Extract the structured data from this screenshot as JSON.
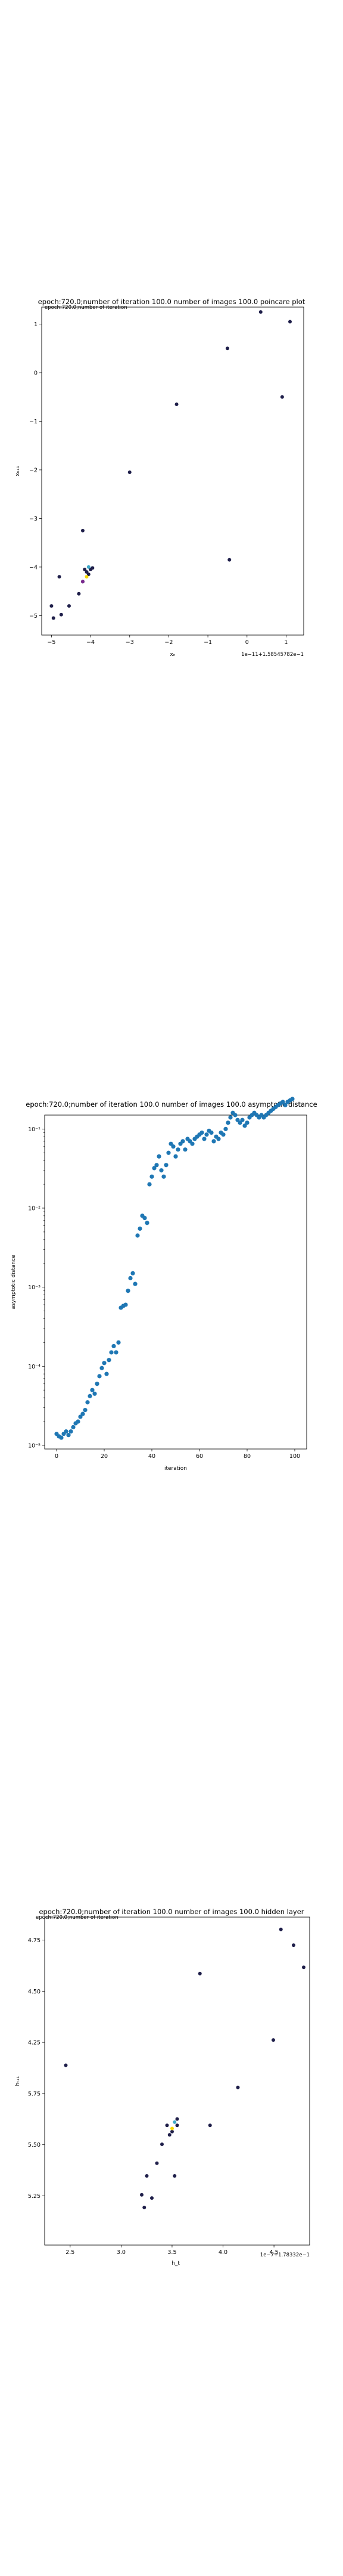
{
  "chart_data": [
    {
      "type": "scatter",
      "title": "epoch:720.0;number of iteration 100.0 number of images 100.0 poincare plot",
      "overlay_text": "epoch:720.0;number of iteration",
      "xlabel": "xₙ",
      "ylabel": "xₙ₊₁",
      "x_offset_text": "1e−11+1.58545782e−1",
      "xlim": [
        -5.25,
        1.45
      ],
      "ylim": [
        -5.4,
        1.35
      ],
      "xticks": [
        -5,
        -4,
        -3,
        -2,
        -1,
        0,
        1
      ],
      "xtick_labels": [
        "−5",
        "−4",
        "−3",
        "−2",
        "−1",
        "0",
        "1"
      ],
      "yticks": [
        -5,
        -4,
        -3,
        -2,
        -1,
        0,
        1
      ],
      "ytick_labels": [
        "−5",
        "−4",
        "−3",
        "−2",
        "−1",
        "0",
        "1"
      ],
      "grid": false,
      "marker_color": "#1f1f4a",
      "points": [
        [
          -4.95,
          -5.05
        ],
        [
          -5.0,
          -4.8
        ],
        [
          -4.75,
          -4.98
        ],
        [
          -4.55,
          -4.8
        ],
        [
          -4.3,
          -4.55
        ],
        [
          -4.2,
          -4.3
        ],
        [
          -4.1,
          -4.1
        ],
        [
          -4.0,
          -4.05
        ],
        [
          -4.05,
          -4.15
        ],
        [
          -3.95,
          -4.02
        ],
        [
          -4.15,
          -4.05
        ],
        [
          -4.8,
          -4.2
        ],
        [
          -4.2,
          -3.25
        ],
        [
          -3.0,
          -2.05
        ],
        [
          -1.8,
          -0.65
        ],
        [
          -0.5,
          0.5
        ],
        [
          0.35,
          1.25
        ],
        [
          1.1,
          1.05
        ],
        [
          0.9,
          -0.5
        ],
        [
          -0.45,
          -3.85
        ]
      ],
      "highlight_points": [
        [
          -4.1,
          -4.2
        ],
        [
          -4.05,
          -4.0
        ],
        [
          -4.2,
          -4.3
        ]
      ],
      "highlight_colors": [
        "#f5d800",
        "#3fa9c9",
        "#7b2a8f"
      ]
    },
    {
      "type": "scatter",
      "title": "epoch:720.0;number of iteration 100.0  number of images 100.0 asymptotic distance",
      "xlabel": "iteration",
      "ylabel": "asymptotic distance",
      "scale_y": "log",
      "xlim": [
        -5,
        105
      ],
      "ylim": [
        9e-06,
        0.15
      ],
      "xticks": [
        0,
        20,
        40,
        60,
        80,
        100
      ],
      "xtick_labels": [
        "0",
        "20",
        "40",
        "60",
        "80",
        "100"
      ],
      "yticks": [
        1e-05,
        0.0001,
        0.001,
        0.01,
        0.1
      ],
      "ytick_labels": [
        "10⁻⁵",
        "10⁻⁴",
        "10⁻³",
        "10⁻²",
        "10⁻¹"
      ],
      "grid": false,
      "marker_color": "#1f77b4",
      "x": [
        0,
        1,
        2,
        3,
        4,
        5,
        6,
        7,
        8,
        9,
        10,
        11,
        12,
        13,
        14,
        15,
        16,
        17,
        18,
        19,
        20,
        21,
        22,
        23,
        24,
        25,
        26,
        27,
        28,
        29,
        30,
        31,
        32,
        33,
        34,
        35,
        36,
        37,
        38,
        39,
        40,
        41,
        42,
        43,
        44,
        45,
        46,
        47,
        48,
        49,
        50,
        51,
        52,
        53,
        54,
        55,
        56,
        57,
        58,
        59,
        60,
        61,
        62,
        63,
        64,
        65,
        66,
        67,
        68,
        69,
        70,
        71,
        72,
        73,
        74,
        75,
        76,
        77,
        78,
        79,
        80,
        81,
        82,
        83,
        84,
        85,
        86,
        87,
        88,
        89,
        90,
        91,
        92,
        93,
        94,
        95,
        96,
        97,
        98,
        99
      ],
      "values": [
        1.4e-05,
        1.3e-05,
        1.25e-05,
        1.4e-05,
        1.5e-05,
        1.35e-05,
        1.5e-05,
        1.7e-05,
        1.9e-05,
        2e-05,
        2.3e-05,
        2.5e-05,
        2.8e-05,
        3.5e-05,
        4.2e-05,
        5e-05,
        4.5e-05,
        6e-05,
        7.5e-05,
        9.5e-05,
        0.00011,
        8e-05,
        0.00012,
        0.00015,
        0.00018,
        0.00015,
        0.0002,
        0.00055,
        0.00058,
        0.0006,
        0.0009,
        0.0013,
        0.0015,
        0.0011,
        0.0045,
        0.0055,
        0.008,
        0.0075,
        0.0065,
        0.02,
        0.025,
        0.032,
        0.035,
        0.045,
        0.03,
        0.025,
        0.035,
        0.05,
        0.065,
        0.06,
        0.045,
        0.055,
        0.065,
        0.07,
        0.055,
        0.075,
        0.07,
        0.065,
        0.075,
        0.08,
        0.085,
        0.09,
        0.075,
        0.085,
        0.095,
        0.09,
        0.07,
        0.08,
        0.075,
        0.09,
        0.085,
        0.1,
        0.12,
        0.14,
        0.16,
        0.15,
        0.13,
        0.12,
        0.13,
        0.11,
        0.12,
        0.14,
        0.15,
        0.16,
        0.15,
        0.14,
        0.15,
        0.14,
        0.15,
        0.16,
        0.17,
        0.18,
        0.19,
        0.2,
        0.21,
        0.22,
        0.2,
        0.22,
        0.23,
        0.24
      ]
    },
    {
      "type": "scatter",
      "title": "epoch:720.0;number of iteration 100.0  number of images 100.0 hidden layer",
      "overlay_text": "epoch:720.0;number of iteration",
      "xlabel": "h_t",
      "ylabel": "hₜ₊₁",
      "x_offset_text": "1e−7+1.78332e−1",
      "xlim": [
        2.25,
        4.85
      ],
      "ylim": [
        5.05,
        4.82
      ],
      "yticks_display": [
        5.25,
        5.5,
        5.75,
        4.25,
        4.5,
        4.75
      ],
      "xticks": [
        2.5,
        3.0,
        3.5,
        4.0,
        4.5
      ],
      "xtick_labels": [
        "2.5",
        "3.0",
        "3.5",
        "4.0",
        "4.5"
      ],
      "ytick_labels": [
        "5.25",
        "5.50",
        "5.75",
        "4.25",
        "4.50",
        "4.75"
      ],
      "grid": false,
      "marker_color": "#1f1f4a",
      "points_frac": [
        [
          0.06,
          0.55
        ],
        [
          0.36,
          0.14
        ],
        [
          0.37,
          0.1
        ],
        [
          0.38,
          0.2
        ],
        [
          0.42,
          0.24
        ],
        [
          0.44,
          0.3
        ],
        [
          0.47,
          0.33
        ],
        [
          0.48,
          0.34
        ],
        [
          0.5,
          0.36
        ],
        [
          0.5,
          0.38
        ],
        [
          0.46,
          0.36
        ],
        [
          0.4,
          0.13
        ],
        [
          0.49,
          0.2
        ],
        [
          0.63,
          0.36
        ],
        [
          0.59,
          0.84
        ],
        [
          0.74,
          0.48
        ],
        [
          0.88,
          0.63
        ],
        [
          0.91,
          0.98
        ],
        [
          0.96,
          0.93
        ],
        [
          1.0,
          0.86
        ]
      ],
      "highlight_points_frac": [
        [
          0.48,
          0.35
        ],
        [
          0.49,
          0.37
        ]
      ],
      "highlight_colors": [
        "#f5d800",
        "#3fa9c9"
      ]
    }
  ]
}
